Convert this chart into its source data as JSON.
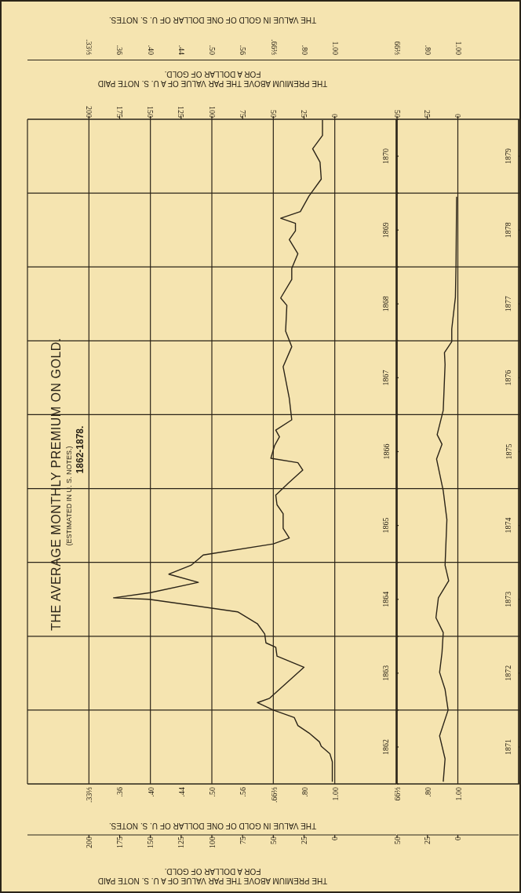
{
  "chart_data": [
    {
      "type": "line",
      "title": "THE AVERAGE MONTHLY PREMIUM ON GOLD.",
      "subtitle": "(ESTIMATED IN U. S. NOTES.)",
      "annotations": [
        "1862-1878.",
        "THE VALUE IN GOLD OF ONE DOLLAR OF U. S. NOTES.",
        ".33⅓",
        ".36",
        ".40",
        ".44",
        ".50",
        ".56",
        ".66⅔",
        ".80",
        "1.00",
        "THE VALUE IN GOLD OF ONE DOLLAR OF U. S. NOTES.",
        ".33⅓",
        ".36",
        ".40",
        ".44",
        ".50",
        ".56",
        ".66⅔",
        ".80",
        "1.00"
      ],
      "xlabel": "THE PREMIUM ABOVE THE PAR VALUE OF A U. S. NOTE PAID FOR A DOLLAR OF GOLD.",
      "x2label": "THE PREMIUM ABOVE THE PAR VALUE OF A U. S. NOTE PAID FOR A DOLLAR OF GOLD.",
      "x": [
        2,
        2,
        4,
        11,
        12.5,
        21,
        30,
        33,
        50,
        63,
        53,
        25,
        47,
        48,
        56,
        57,
        63,
        79,
        151,
        180,
        150,
        111,
        135,
        117,
        107,
        50,
        37,
        42,
        42,
        47,
        48,
        38,
        26,
        30,
        52,
        49,
        45,
        48,
        35,
        37,
        42,
        35,
        40,
        39,
        44,
        35,
        35,
        30,
        37,
        32,
        32,
        44,
        28,
        21,
        11,
        12,
        18,
        10,
        10
      ],
      "values": [
        1862.03,
        1862.3,
        1862.41,
        1862.51,
        1862.57,
        1862.69,
        1862.79,
        1862.9,
        1863.0,
        1863.1,
        1863.16,
        1863.58,
        1863.73,
        1863.85,
        1863.91,
        1864.03,
        1864.17,
        1864.33,
        1864.5,
        1864.52,
        1864.59,
        1864.73,
        1864.84,
        1864.96,
        1865.1,
        1865.25,
        1865.33,
        1865.46,
        1865.66,
        1865.78,
        1865.91,
        1866.07,
        1866.25,
        1866.35,
        1866.41,
        1866.58,
        1866.7,
        1866.79,
        1866.93,
        1867.22,
        1867.65,
        1867.92,
        1868.13,
        1868.48,
        1868.58,
        1868.83,
        1868.98,
        1869.18,
        1869.37,
        1869.49,
        1869.59,
        1869.66,
        1869.75,
        1869.96,
        1870.19,
        1870.42,
        1870.6,
        1870.78,
        1870.99
      ],
      "color": "#2b2418",
      "ylim": [
        1862,
        1871
      ],
      "yticks": [
        {
          "value": 1862,
          "label": null
        },
        {
          "value": 1862.5,
          "label": "1862"
        },
        {
          "value": 1863,
          "label": null
        },
        {
          "value": 1863.5,
          "label": "1863"
        },
        {
          "value": 1864,
          "label": null
        },
        {
          "value": 1864.5,
          "label": "1864"
        },
        {
          "value": 1865,
          "label": null
        },
        {
          "value": 1865.5,
          "label": "1865"
        },
        {
          "value": 1866,
          "label": null
        },
        {
          "value": 1866.5,
          "label": "1866"
        },
        {
          "value": 1867,
          "label": null
        },
        {
          "value": 1867.5,
          "label": "1867"
        },
        {
          "value": 1868,
          "label": null
        },
        {
          "value": 1868.5,
          "label": "1868"
        },
        {
          "value": 1869,
          "label": null
        },
        {
          "value": 1869.5,
          "label": "1869"
        },
        {
          "value": 1870,
          "label": null
        },
        {
          "value": 1870.5,
          "label": "1870"
        },
        {
          "value": 1871,
          "label": null
        }
      ],
      "xlim": [
        250,
        -50
      ],
      "xticks": [
        200,
        175,
        150,
        125,
        100,
        75,
        50,
        25,
        0
      ],
      "x2lim": [
        250,
        -50
      ],
      "x2ticks": [
        200,
        175,
        150,
        125,
        100,
        75,
        50,
        25,
        0
      ],
      "grid": true
    },
    {
      "type": "line",
      "annotations": [
        "66⅔",
        ".80",
        "1.00",
        "66⅔",
        ".80",
        "1.00"
      ],
      "x": [
        12,
        10.5,
        15,
        8,
        10.5,
        15,
        13,
        12,
        18,
        16,
        7.5,
        10.5,
        9,
        12,
        17.5,
        13,
        17,
        12,
        10.5,
        11,
        5,
        5,
        2,
        1.5,
        1
      ],
      "values": [
        1871.03,
        1871.34,
        1871.65,
        1872.0,
        1872.28,
        1872.51,
        1872.78,
        1873.05,
        1873.25,
        1873.52,
        1873.75,
        1873.96,
        1874.58,
        1874.97,
        1875.4,
        1875.6,
        1875.73,
        1876.06,
        1876.68,
        1876.84,
        1876.99,
        1877.16,
        1877.59,
        1878.02,
        1878.95
      ],
      "color": "#2b2418",
      "ylim": [
        1871,
        1880
      ],
      "yticks": [
        {
          "value": 1871,
          "label": null
        },
        {
          "value": 1871.5,
          "label": "1871"
        },
        {
          "value": 1872,
          "label": null
        },
        {
          "value": 1872.5,
          "label": "1872"
        },
        {
          "value": 1873,
          "label": null
        },
        {
          "value": 1873.5,
          "label": "1873"
        },
        {
          "value": 1874,
          "label": null
        },
        {
          "value": 1874.5,
          "label": "1874"
        },
        {
          "value": 1875,
          "label": null
        },
        {
          "value": 1875.5,
          "label": "1875"
        },
        {
          "value": 1876,
          "label": null
        },
        {
          "value": 1876.5,
          "label": "1876"
        },
        {
          "value": 1877,
          "label": null
        },
        {
          "value": 1877.5,
          "label": "1877"
        },
        {
          "value": 1878,
          "label": null
        },
        {
          "value": 1878.5,
          "label": "1878"
        },
        {
          "value": 1879,
          "label": null
        },
        {
          "value": 1879.5,
          "label": "1879"
        },
        {
          "value": 1880,
          "label": null
        }
      ],
      "xlim": [
        50,
        -50
      ],
      "xticks": [
        50,
        25,
        0
      ],
      "x2lim": [
        50,
        -50
      ],
      "x2ticks": [
        50,
        25,
        0
      ],
      "grid": true
    }
  ]
}
